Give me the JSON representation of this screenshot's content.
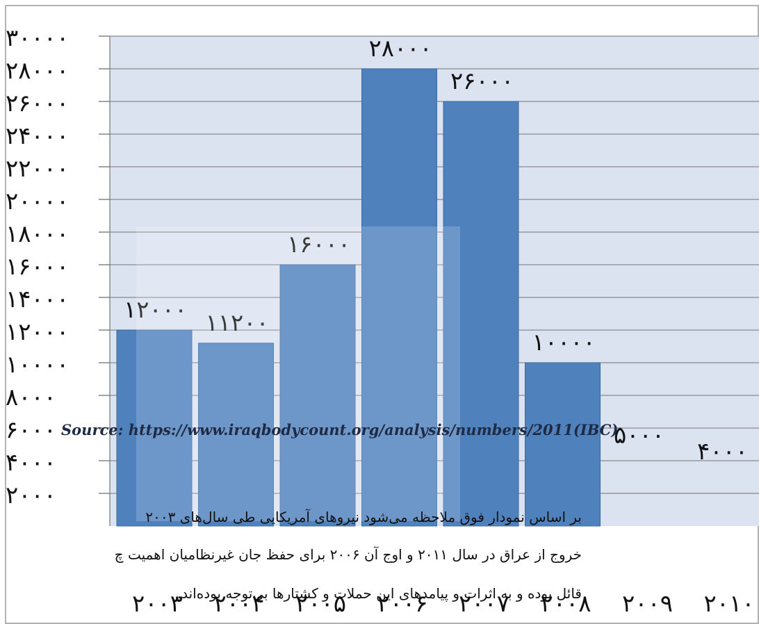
{
  "chart_data": {
    "type": "bar",
    "categories": [
      "۲۰۰۳",
      "۲۰۰۴",
      "۲۰۰۵",
      "۲۰۰۶",
      "۲۰۰۷",
      "۲۰۰۸",
      "۲۰۰۹",
      "۲۰۱۰"
    ],
    "values": [
      12000,
      11200,
      16000,
      28000,
      26000,
      10000,
      5000,
      4000
    ],
    "value_labels": [
      "۱۲۰۰۰",
      "۱۱۲۰۰",
      "۱۶۰۰۰",
      "۲۸۰۰۰",
      "۲۶۰۰۰",
      "۱۰۰۰۰",
      "۵۰۰۰",
      "۴۰۰۰"
    ],
    "ylim": [
      0,
      30000
    ],
    "yticks": [
      30000,
      28000,
      26000,
      24000,
      22000,
      20000,
      18000,
      16000,
      14000,
      12000,
      10000,
      8000,
      6000,
      4000,
      2000
    ],
    "ytick_labels": [
      "۳۰۰۰۰",
      "۲۸۰۰۰",
      "۲۶۰۰۰",
      "۲۴۰۰۰",
      "۲۲۰۰۰",
      "۲۰۰۰۰",
      "۱۸۰۰۰",
      "۱۶۰۰۰",
      "۱۴۰۰۰",
      "۱۲۰۰۰",
      "۱۰۰۰۰",
      "۸۰۰۰",
      "۶۰۰۰",
      "۴۰۰۰",
      "۲۰۰۰"
    ],
    "grid": true,
    "bar_color": "#4f81bd",
    "plot_bg": "#dbe3f1"
  },
  "source": "Source: https://www.iraqbodycount.org/analysis/numbers/2011(IBC)",
  "paragraph": {
    "line1": "بر اساس نمودار فوق ملاحظه می‌شود نیروهای آمریکایی طی سال‌های ۲۰۰۳",
    "line2": "خروج از عراق در سال ۲۰۱۱ و اوج آن ۲۰۰۶ برای حفظ جان غیرنظامیان اهمیت چ",
    "line3": "قائل بوده و به اثرات و پیامدهای این حملات و کشتارها بی‌توجه بوده‌اند."
  }
}
